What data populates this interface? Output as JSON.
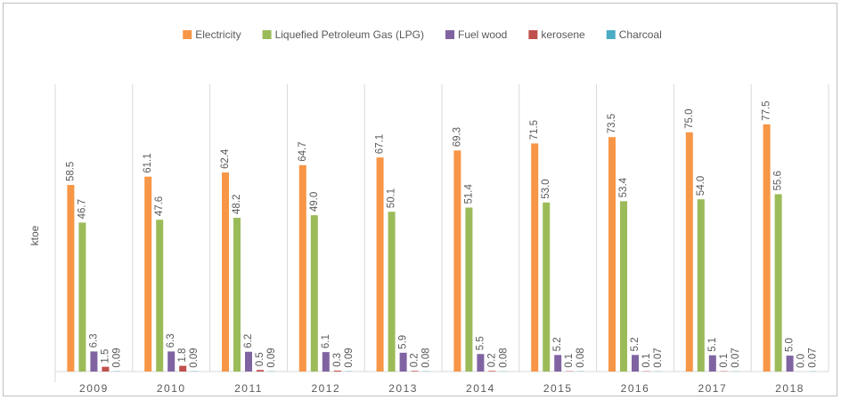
{
  "chart_data": {
    "type": "bar",
    "ylabel": "ktoe",
    "categories": [
      "2009",
      "2010",
      "2011",
      "2012",
      "2013",
      "2014",
      "2015",
      "2016",
      "2017",
      "2018"
    ],
    "series": [
      {
        "name": "Electricity",
        "color": "#f79646",
        "values": [
          58.5,
          61.1,
          62.4,
          64.7,
          67.1,
          69.3,
          71.5,
          73.5,
          75.0,
          77.5
        ],
        "value_labels": [
          "58.5",
          "61.1",
          "62.4",
          "64.7",
          "67.1",
          "69.3",
          "71.5",
          "73.5",
          "75.0",
          "77.5"
        ]
      },
      {
        "name": "Liquefied Petroleum Gas (LPG)",
        "color": "#9bbb59",
        "values": [
          46.7,
          47.6,
          48.2,
          49.0,
          50.1,
          51.4,
          53.0,
          53.4,
          54.0,
          55.6
        ],
        "value_labels": [
          "46.7",
          "47.6",
          "48.2",
          "49.0",
          "50.1",
          "51.4",
          "53.0",
          "53.4",
          "54.0",
          "55.6"
        ]
      },
      {
        "name": "Fuel wood",
        "color": "#8064a2",
        "values": [
          6.3,
          6.3,
          6.2,
          6.1,
          5.9,
          5.5,
          5.2,
          5.2,
          5.1,
          5.0
        ],
        "value_labels": [
          "6.3",
          "6.3",
          "6.2",
          "6.1",
          "5.9",
          "5.5",
          "5.2",
          "5.2",
          "5.1",
          "5.0"
        ]
      },
      {
        "name": "kerosene",
        "color": "#c0504d",
        "values": [
          1.5,
          1.8,
          0.5,
          0.3,
          0.2,
          0.2,
          0.1,
          0.1,
          0.1,
          0.0
        ],
        "value_labels": [
          "1.5",
          "1.8",
          "0.5",
          "0.3",
          "0.2",
          "0.2",
          "0.1",
          "0.1",
          "0.1",
          "0.0"
        ]
      },
      {
        "name": "Charcoal",
        "color": "#4bacc6",
        "values": [
          0.09,
          0.09,
          0.09,
          0.09,
          0.08,
          0.08,
          0.08,
          0.07,
          0.07,
          0.07
        ],
        "value_labels": [
          "0.09",
          "0.09",
          "0.09",
          "0.09",
          "0.08",
          "0.08",
          "0.08",
          "0.07",
          "0.07",
          "0.07"
        ]
      }
    ],
    "ylim": [
      0,
      90
    ],
    "legend": "top"
  }
}
